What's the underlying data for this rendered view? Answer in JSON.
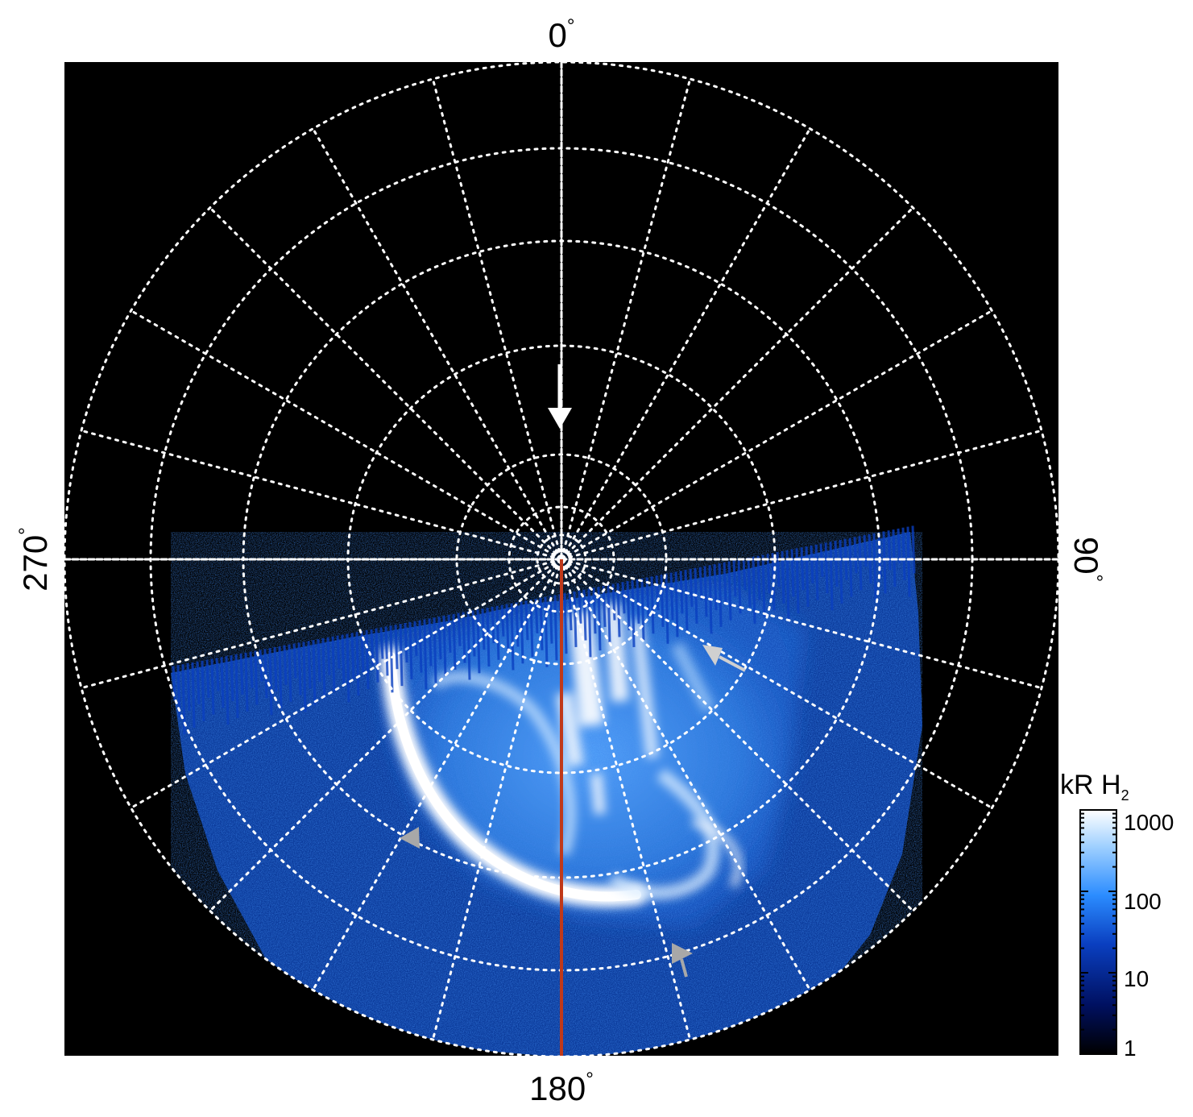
{
  "figure": {
    "longitude_labels": {
      "top": "0",
      "right": "90",
      "bottom": "180",
      "left": "270",
      "degree_symbol": "°"
    },
    "colorbar": {
      "title_main": "kR H",
      "title_subscript": "2",
      "ticks": [
        "1000",
        "100",
        "10",
        "1"
      ],
      "tick_values": [
        1000,
        100,
        10,
        1
      ],
      "scale": "log",
      "colors": [
        "#000000",
        "#001060",
        "#0a3fc0",
        "#2b8cff",
        "#9fd0ff",
        "#ffffff"
      ]
    },
    "grid": {
      "style": "dotted",
      "color": "#ffffff",
      "rings": 10,
      "meridian_step_deg": 15
    },
    "image_background": "#000000",
    "aurora_color_scale": [
      "#00082a",
      "#0a3fc0",
      "#2b8cff",
      "#9fd0ff",
      "#ffffff"
    ],
    "meridian_line_color": "#c0391a",
    "arrows": [
      {
        "color": "#ffffff",
        "direction": "down"
      },
      {
        "color": "#cccccc",
        "direction": "up-left"
      },
      {
        "color": "#aaaaaa",
        "direction": "left"
      },
      {
        "color": "#aaaaaa",
        "direction": "up-left"
      }
    ]
  }
}
